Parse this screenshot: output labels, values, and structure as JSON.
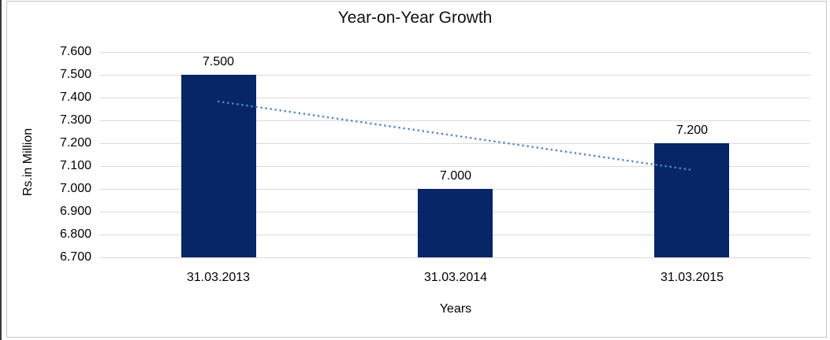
{
  "chart_data": {
    "type": "bar",
    "title": "Year-on-Year Growth",
    "categories": [
      "31.03.2013",
      "31.03.2014",
      "31.03.2015"
    ],
    "values": [
      7.5,
      7.0,
      7.2
    ],
    "value_labels": [
      "7.500",
      "7.000",
      "7.200"
    ],
    "xlabel": "Years",
    "ylabel": "Rs.in Million",
    "ylim": [
      6.7,
      7.6
    ],
    "yticks": [
      "7.600",
      "7.500",
      "7.400",
      "7.300",
      "7.200",
      "7.100",
      "7.000",
      "6.900",
      "6.800",
      "6.700"
    ],
    "grid": "horizontal-only",
    "legend": "none",
    "bar_color": "#062668",
    "gridline_color": "#d9d9d9",
    "trendline": {
      "type": "linear",
      "style": "dotted",
      "color": "#4e86c6",
      "start_value": 7.383,
      "end_value": 7.083
    }
  }
}
